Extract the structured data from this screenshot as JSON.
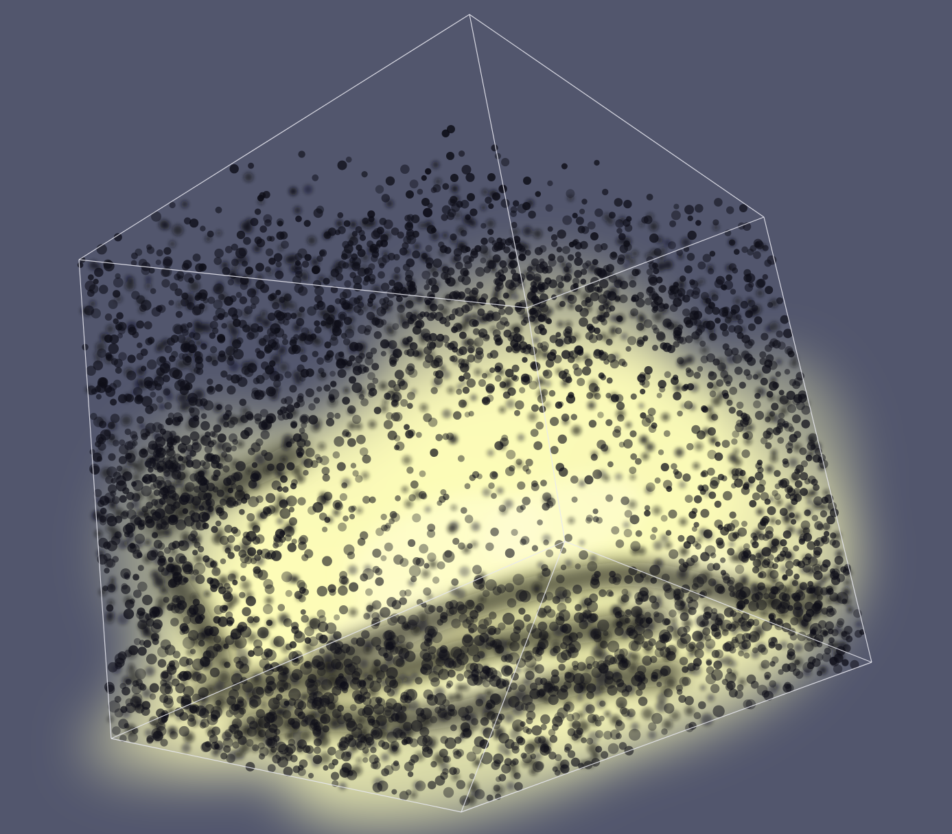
{
  "viewport": {
    "background_color": "#52566d",
    "bounding_box_color": "#e8e8f0",
    "cloud_glow_color": "#fdfcb8",
    "particle_color": "#0e0e18"
  }
}
